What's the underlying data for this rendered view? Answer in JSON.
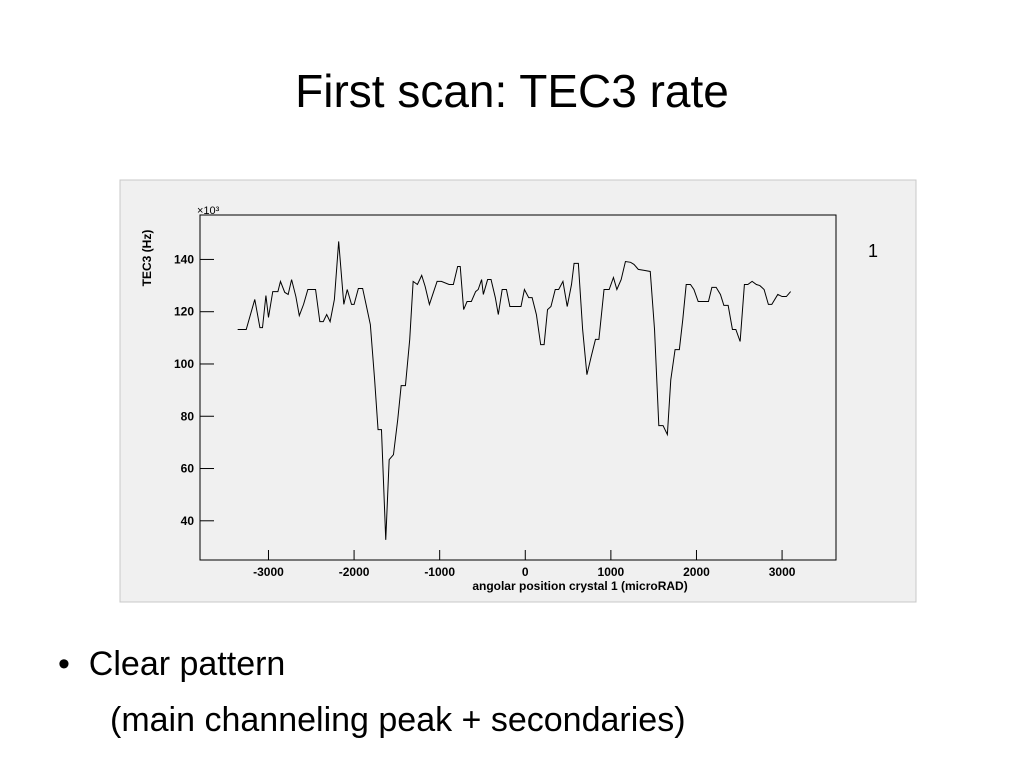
{
  "slide": {
    "title": "First scan: TEC3 rate",
    "bullets": [
      "Clear pattern",
      "(main channeling peak + secondaries)"
    ]
  },
  "chart_data": {
    "type": "line",
    "x_label": "angolar position crystal 1 (microRAD)",
    "y_label": "TEC3 (Hz)",
    "y_multiplier": "×10³",
    "annotation": "1",
    "color": "#000000",
    "xlim": [
      -3800,
      3630
    ],
    "xticks": [
      -3000,
      -2000,
      -1000,
      0,
      1000,
      2000,
      3000
    ],
    "ylim": [
      25,
      157
    ],
    "yticks": [
      40,
      60,
      80,
      100,
      120,
      140
    ],
    "x": [
      -3360,
      -3260,
      -3160,
      -3100,
      -3070,
      -3030,
      -3000,
      -2950,
      -2890,
      -2860,
      -2810,
      -2770,
      -2730,
      -2680,
      -2640,
      -2590,
      -2540,
      -2450,
      -2400,
      -2360,
      -2320,
      -2280,
      -2230,
      -2180,
      -2120,
      -2080,
      -2030,
      -2000,
      -1950,
      -1900,
      -1860,
      -1810,
      -1760,
      -1720,
      -1680,
      -1630,
      -1590,
      -1540,
      -1490,
      -1450,
      -1400,
      -1350,
      -1310,
      -1260,
      -1210,
      -1170,
      -1120,
      -1070,
      -1030,
      -980,
      -890,
      -840,
      -790,
      -760,
      -720,
      -680,
      -630,
      -580,
      -550,
      -510,
      -490,
      -440,
      -400,
      -350,
      -315,
      -270,
      -220,
      -180,
      -140,
      -90,
      -50,
      -10,
      40,
      80,
      130,
      180,
      220,
      260,
      300,
      350,
      390,
      440,
      490,
      540,
      570,
      620,
      670,
      720,
      770,
      820,
      860,
      920,
      980,
      1030,
      1070,
      1120,
      1170,
      1230,
      1270,
      1320,
      1390,
      1460,
      1510,
      1560,
      1610,
      1660,
      1700,
      1750,
      1800,
      1840,
      1880,
      1930,
      1970,
      2020,
      2070,
      2140,
      2180,
      2230,
      2280,
      2320,
      2370,
      2420,
      2460,
      2510,
      2560,
      2600,
      2650,
      2700,
      2740,
      2790,
      2840,
      2880,
      2950,
      3000,
      3050,
      3100
    ],
    "values": [
      113.2,
      113.2,
      124.7,
      113.9,
      113.9,
      126.2,
      117.8,
      127.7,
      127.7,
      131.6,
      127.4,
      126.6,
      132.3,
      125.8,
      118.5,
      122.8,
      128.5,
      128.5,
      116.2,
      116.2,
      118.9,
      116.2,
      124.7,
      146.9,
      122.8,
      128.5,
      122.8,
      122.8,
      128.9,
      128.9,
      122.8,
      115.1,
      94.0,
      74.9,
      74.9,
      32.7,
      63.4,
      65.3,
      78.7,
      91.7,
      91.7,
      109.4,
      131.6,
      130.4,
      133.9,
      129.7,
      122.8,
      127.7,
      131.6,
      131.6,
      130.4,
      130.4,
      137.3,
      137.3,
      120.8,
      123.9,
      123.9,
      127.7,
      128.5,
      132.3,
      126.6,
      132.3,
      132.3,
      125.4,
      118.9,
      128.5,
      128.5,
      122.0,
      122.0,
      122.0,
      122.0,
      128.5,
      125.4,
      125.4,
      118.9,
      107.4,
      107.4,
      120.8,
      122.0,
      128.5,
      128.5,
      131.6,
      122.0,
      130.4,
      138.5,
      138.5,
      113.2,
      95.9,
      102.8,
      109.4,
      109.4,
      128.5,
      128.5,
      133.1,
      128.5,
      132.3,
      139.2,
      138.9,
      138.1,
      136.2,
      135.8,
      135.4,
      113.2,
      76.4,
      76.4,
      73.0,
      94.0,
      105.5,
      105.5,
      117.0,
      130.4,
      130.4,
      128.5,
      123.9,
      123.9,
      123.9,
      129.3,
      129.3,
      126.6,
      122.4,
      122.4,
      113.2,
      113.2,
      108.6,
      130.4,
      130.4,
      131.6,
      130.4,
      130.0,
      128.5,
      122.8,
      122.8,
      126.6,
      125.8,
      125.8,
      127.7
    ]
  }
}
